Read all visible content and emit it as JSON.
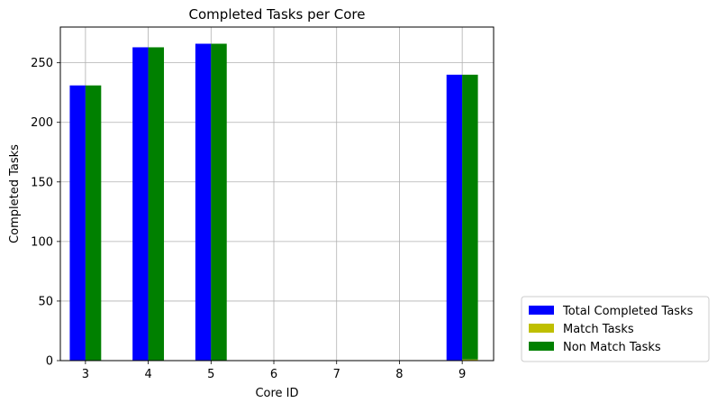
{
  "chart_data": {
    "type": "bar",
    "title": "Completed Tasks per Core",
    "xlabel": "Core ID",
    "ylabel": "Completed Tasks",
    "x_ticks": [
      3,
      4,
      5,
      6,
      7,
      8,
      9
    ],
    "y_ticks": [
      0,
      50,
      100,
      150,
      200,
      250
    ],
    "xlim": [
      2.6,
      9.5
    ],
    "ylim": [
      0,
      280
    ],
    "grid": true,
    "legend_position": "lower-right-outside",
    "categories": [
      3,
      4,
      5,
      9
    ],
    "series": [
      {
        "name": "Total Completed Tasks",
        "color": "#0000ff",
        "values": [
          231,
          263,
          266,
          240
        ]
      },
      {
        "name": "Match Tasks",
        "color": "#bfbf00",
        "values": [
          0,
          0,
          0,
          1
        ]
      },
      {
        "name": "Non Match Tasks",
        "color": "#008000",
        "values": [
          231,
          263,
          266,
          239
        ]
      }
    ]
  }
}
